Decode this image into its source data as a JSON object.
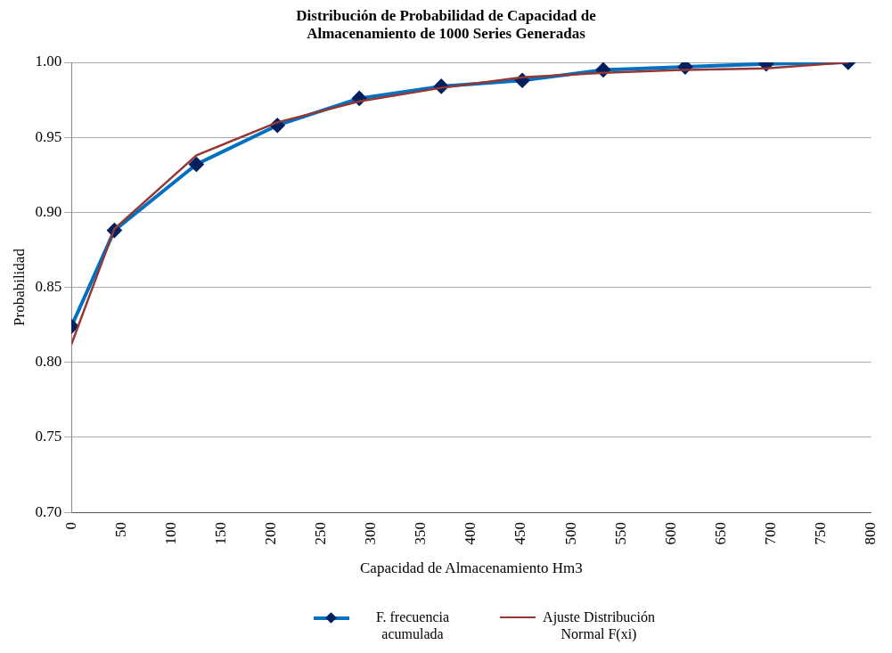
{
  "chart_data": {
    "type": "line",
    "title": "Distribución de Probabilidad de Capacidad de Almacenamiento de 1000 Series Generadas",
    "xlabel": "Capacidad de Almacenamiento Hm3",
    "ylabel": "Probabilidad",
    "x": [
      0,
      43,
      125,
      206,
      288,
      370,
      451,
      532,
      614,
      695,
      777
    ],
    "series": [
      {
        "name": "F. frecuencia acumulada",
        "color": "#0070c0",
        "marker": "diamond",
        "values": [
          0.824,
          0.888,
          0.932,
          0.958,
          0.976,
          0.984,
          0.988,
          0.995,
          0.997,
          0.999,
          1.0
        ]
      },
      {
        "name": "Ajuste  Distribución Normal F(xi)",
        "color": "#953735",
        "marker": "none",
        "values": [
          0.812,
          0.889,
          0.938,
          0.96,
          0.974,
          0.983,
          0.99,
          0.993,
          0.995,
          0.996,
          1.0
        ]
      }
    ],
    "xlim": [
      0,
      800
    ],
    "xticks": [
      0,
      50,
      100,
      150,
      200,
      250,
      300,
      350,
      400,
      450,
      500,
      550,
      600,
      650,
      700,
      750,
      800
    ],
    "ylim": [
      0.7,
      1.0
    ],
    "yticks": [
      {
        "value": 0.7,
        "label": "0.70"
      },
      {
        "value": 0.75,
        "label": "0.75"
      },
      {
        "value": 0.8,
        "label": "0.80"
      },
      {
        "value": 0.85,
        "label": "0.85"
      },
      {
        "value": 0.9,
        "label": "0.90"
      },
      {
        "value": 0.95,
        "label": "0.95"
      },
      {
        "value": 1.0,
        "label": "1.00"
      }
    ],
    "grid": "y",
    "legend": "bottom"
  }
}
